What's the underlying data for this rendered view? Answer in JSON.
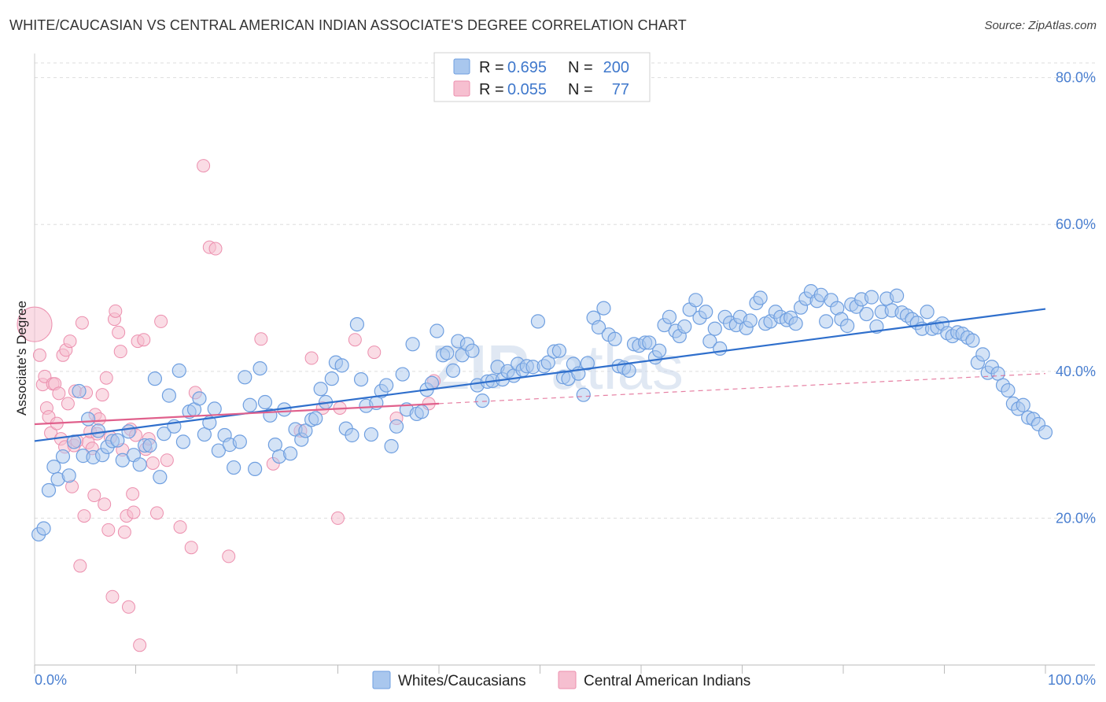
{
  "header": {
    "title": "WHITE/CAUCASIAN VS CENTRAL AMERICAN INDIAN ASSOCIATE'S DEGREE CORRELATION CHART",
    "source": "Source: ZipAtlas.com"
  },
  "watermark": {
    "zip": "ZIP",
    "atlas": "atlas"
  },
  "legend_box": {
    "r_label": "R =",
    "n_label": "N =",
    "rows": [
      {
        "r": "0.695",
        "n": "200"
      },
      {
        "r": "0.055",
        "n": "77"
      }
    ]
  },
  "colors": {
    "blue_fill": "#a9c7ee",
    "blue_stroke": "#6f9fe0",
    "blue_line": "#2f6fcc",
    "pink_fill": "#f6bfd0",
    "pink_stroke": "#ec8fae",
    "pink_line": "#e0608c",
    "tick_text": "#4a7fd0"
  },
  "chart_data": {
    "type": "scatter",
    "title": "WHITE/CAUCASIAN VS CENTRAL AMERICAN INDIAN ASSOCIATE'S DEGREE CORRELATION CHART",
    "xlabel": "",
    "ylabel": "Associate's Degree",
    "xlim": [
      0,
      100
    ],
    "ylim": [
      0,
      82
    ],
    "x_tick_labels": [
      "0.0%",
      "100.0%"
    ],
    "y_ticks": [
      20,
      40,
      60,
      80
    ],
    "y_tick_labels": [
      "20.0%",
      "40.0%",
      "60.0%",
      "80.0%"
    ],
    "grid": true,
    "legend_position": "bottom",
    "series": [
      {
        "name": "Whites/Caucasians",
        "r": 0.695,
        "n": 200,
        "trend": {
          "x0": 0,
          "y0": 30.5,
          "x1": 100,
          "y1": 48.5
        },
        "points": [
          [
            0.4,
            17.8
          ],
          [
            0.9,
            18.6
          ],
          [
            1.4,
            23.8
          ],
          [
            1.9,
            27.0
          ],
          [
            2.3,
            25.3
          ],
          [
            2.8,
            28.4
          ],
          [
            3.4,
            25.8
          ],
          [
            3.9,
            30.4
          ],
          [
            4.4,
            37.3
          ],
          [
            4.8,
            28.5
          ],
          [
            5.3,
            33.5
          ],
          [
            5.8,
            28.3
          ],
          [
            6.3,
            31.9
          ],
          [
            6.7,
            28.6
          ],
          [
            7.2,
            29.7
          ],
          [
            7.7,
            30.5
          ],
          [
            8.2,
            30.6
          ],
          [
            8.7,
            27.9
          ],
          [
            9.3,
            31.8
          ],
          [
            9.8,
            28.6
          ],
          [
            10.4,
            27.3
          ],
          [
            10.9,
            29.9
          ],
          [
            11.4,
            29.9
          ],
          [
            11.9,
            39.0
          ],
          [
            12.4,
            25.6
          ],
          [
            12.8,
            31.5
          ],
          [
            13.3,
            36.7
          ],
          [
            13.8,
            32.5
          ],
          [
            14.3,
            40.1
          ],
          [
            14.7,
            30.4
          ],
          [
            15.3,
            34.5
          ],
          [
            15.8,
            34.8
          ],
          [
            16.3,
            36.3
          ],
          [
            16.8,
            31.4
          ],
          [
            17.3,
            33.0
          ],
          [
            17.8,
            34.9
          ],
          [
            18.2,
            29.2
          ],
          [
            18.8,
            31.3
          ],
          [
            19.3,
            30.0
          ],
          [
            19.7,
            26.9
          ],
          [
            20.3,
            30.4
          ],
          [
            20.8,
            39.2
          ],
          [
            21.3,
            35.4
          ],
          [
            21.8,
            26.7
          ],
          [
            22.3,
            40.4
          ],
          [
            22.8,
            35.8
          ],
          [
            23.3,
            34.0
          ],
          [
            23.8,
            30.0
          ],
          [
            24.2,
            28.4
          ],
          [
            24.7,
            34.8
          ],
          [
            25.3,
            28.8
          ],
          [
            25.8,
            32.1
          ],
          [
            26.4,
            30.7
          ],
          [
            26.8,
            31.9
          ],
          [
            27.4,
            33.4
          ],
          [
            27.8,
            33.6
          ],
          [
            28.3,
            37.6
          ],
          [
            28.8,
            35.8
          ],
          [
            29.4,
            39.0
          ],
          [
            29.8,
            41.2
          ],
          [
            30.4,
            40.8
          ],
          [
            30.8,
            32.2
          ],
          [
            31.4,
            31.3
          ],
          [
            31.9,
            46.4
          ],
          [
            32.3,
            38.9
          ],
          [
            32.8,
            35.3
          ],
          [
            33.3,
            31.4
          ],
          [
            33.8,
            35.7
          ],
          [
            34.3,
            37.3
          ],
          [
            34.8,
            38.1
          ],
          [
            35.3,
            29.8
          ],
          [
            35.8,
            32.5
          ],
          [
            36.4,
            39.6
          ],
          [
            36.8,
            34.8
          ],
          [
            37.4,
            43.7
          ],
          [
            37.8,
            34.2
          ],
          [
            38.3,
            34.5
          ],
          [
            38.8,
            37.5
          ],
          [
            39.3,
            38.4
          ],
          [
            39.8,
            45.5
          ],
          [
            40.4,
            42.2
          ],
          [
            40.8,
            42.5
          ],
          [
            41.4,
            40.1
          ],
          [
            41.9,
            44.1
          ],
          [
            42.3,
            42.2
          ],
          [
            42.8,
            43.7
          ],
          [
            43.3,
            42.8
          ],
          [
            43.8,
            38.1
          ],
          [
            44.3,
            36.0
          ],
          [
            44.8,
            38.6
          ],
          [
            45.3,
            38.7
          ],
          [
            45.8,
            40.6
          ],
          [
            46.3,
            38.9
          ],
          [
            46.8,
            40.0
          ],
          [
            47.4,
            39.4
          ],
          [
            47.8,
            41.0
          ],
          [
            48.3,
            40.2
          ],
          [
            48.7,
            40.7
          ],
          [
            49.3,
            40.6
          ],
          [
            49.8,
            46.8
          ],
          [
            50.4,
            40.7
          ],
          [
            50.8,
            41.2
          ],
          [
            51.4,
            42.7
          ],
          [
            51.9,
            42.8
          ],
          [
            52.3,
            39.2
          ],
          [
            52.8,
            39.0
          ],
          [
            53.3,
            41.0
          ],
          [
            53.8,
            39.7
          ],
          [
            54.3,
            36.8
          ],
          [
            54.7,
            41.1
          ],
          [
            55.3,
            47.3
          ],
          [
            55.8,
            46.0
          ],
          [
            56.3,
            48.6
          ],
          [
            56.8,
            45.0
          ],
          [
            57.4,
            44.4
          ],
          [
            57.8,
            40.7
          ],
          [
            58.3,
            40.5
          ],
          [
            58.8,
            40.1
          ],
          [
            59.3,
            43.7
          ],
          [
            59.8,
            43.5
          ],
          [
            60.4,
            43.9
          ],
          [
            60.8,
            43.9
          ],
          [
            61.4,
            41.9
          ],
          [
            61.8,
            42.8
          ],
          [
            62.3,
            46.3
          ],
          [
            62.8,
            47.4
          ],
          [
            63.4,
            45.5
          ],
          [
            63.8,
            44.8
          ],
          [
            64.3,
            46.1
          ],
          [
            64.8,
            48.4
          ],
          [
            65.4,
            49.7
          ],
          [
            65.8,
            47.3
          ],
          [
            66.4,
            48.1
          ],
          [
            66.8,
            44.1
          ],
          [
            67.3,
            45.8
          ],
          [
            67.8,
            43.1
          ],
          [
            68.3,
            47.4
          ],
          [
            68.8,
            46.6
          ],
          [
            69.4,
            46.3
          ],
          [
            69.8,
            47.4
          ],
          [
            70.4,
            45.9
          ],
          [
            70.8,
            46.9
          ],
          [
            71.4,
            49.3
          ],
          [
            71.8,
            50.0
          ],
          [
            72.3,
            46.5
          ],
          [
            72.8,
            46.8
          ],
          [
            73.3,
            48.1
          ],
          [
            73.8,
            47.4
          ],
          [
            74.4,
            47.0
          ],
          [
            74.8,
            47.3
          ],
          [
            75.3,
            46.5
          ],
          [
            75.8,
            48.7
          ],
          [
            76.3,
            49.9
          ],
          [
            76.8,
            50.9
          ],
          [
            77.4,
            49.6
          ],
          [
            77.8,
            50.4
          ],
          [
            78.3,
            46.8
          ],
          [
            78.8,
            49.7
          ],
          [
            79.4,
            48.6
          ],
          [
            79.8,
            47.1
          ],
          [
            80.4,
            46.2
          ],
          [
            80.8,
            49.1
          ],
          [
            81.3,
            48.8
          ],
          [
            81.8,
            49.8
          ],
          [
            82.3,
            47.8
          ],
          [
            82.8,
            50.1
          ],
          [
            83.3,
            46.1
          ],
          [
            83.8,
            48.1
          ],
          [
            84.3,
            49.9
          ],
          [
            84.8,
            48.3
          ],
          [
            85.3,
            50.3
          ],
          [
            85.8,
            48.0
          ],
          [
            86.3,
            47.6
          ],
          [
            86.8,
            47.1
          ],
          [
            87.3,
            46.6
          ],
          [
            87.8,
            45.8
          ],
          [
            88.3,
            48.1
          ],
          [
            88.8,
            45.8
          ],
          [
            89.3,
            46.0
          ],
          [
            89.8,
            46.5
          ],
          [
            90.3,
            45.2
          ],
          [
            90.8,
            44.8
          ],
          [
            91.3,
            45.3
          ],
          [
            91.8,
            45.1
          ],
          [
            92.3,
            44.6
          ],
          [
            92.8,
            44.2
          ],
          [
            93.3,
            41.2
          ],
          [
            93.8,
            42.3
          ],
          [
            94.3,
            39.8
          ],
          [
            94.7,
            40.6
          ],
          [
            95.3,
            39.7
          ],
          [
            95.8,
            38.1
          ],
          [
            96.3,
            37.4
          ],
          [
            96.8,
            35.6
          ],
          [
            97.3,
            34.9
          ],
          [
            97.8,
            35.4
          ],
          [
            98.3,
            33.7
          ],
          [
            98.8,
            33.5
          ],
          [
            99.3,
            32.8
          ],
          [
            100.0,
            31.7
          ]
        ]
      },
      {
        "name": "Central American Indians",
        "r": 0.055,
        "n": 77,
        "trend": {
          "x0": 0,
          "y0": 32.8,
          "x1": 40,
          "y1": 35.6
        },
        "trend_dashed": {
          "x0": 40,
          "y0": 35.6,
          "x1": 100,
          "y1": 39.7
        },
        "points": [
          [
            0.5,
            42.2
          ],
          [
            0.8,
            38.2
          ],
          [
            1.0,
            39.3
          ],
          [
            1.2,
            35.0
          ],
          [
            1.4,
            33.8
          ],
          [
            1.6,
            31.6
          ],
          [
            1.8,
            38.3
          ],
          [
            2.0,
            38.3
          ],
          [
            2.2,
            32.9
          ],
          [
            2.4,
            37.0
          ],
          [
            2.6,
            30.8
          ],
          [
            2.8,
            42.2
          ],
          [
            3.0,
            29.7
          ],
          [
            3.1,
            42.9
          ],
          [
            3.3,
            35.6
          ],
          [
            3.5,
            44.1
          ],
          [
            3.7,
            24.3
          ],
          [
            3.9,
            29.9
          ],
          [
            4.0,
            37.3
          ],
          [
            4.2,
            30.5
          ],
          [
            4.5,
            13.5
          ],
          [
            4.7,
            46.6
          ],
          [
            4.9,
            20.3
          ],
          [
            5.1,
            37.1
          ],
          [
            5.3,
            30.3
          ],
          [
            5.5,
            31.8
          ],
          [
            5.7,
            29.5
          ],
          [
            5.9,
            23.1
          ],
          [
            6.0,
            34.1
          ],
          [
            6.2,
            31.5
          ],
          [
            6.4,
            33.5
          ],
          [
            6.7,
            36.8
          ],
          [
            6.9,
            21.9
          ],
          [
            7.1,
            39.1
          ],
          [
            7.3,
            18.4
          ],
          [
            7.5,
            31.0
          ],
          [
            7.7,
            9.3
          ],
          [
            7.9,
            47.1
          ],
          [
            8.0,
            48.2
          ],
          [
            8.3,
            45.3
          ],
          [
            8.5,
            42.7
          ],
          [
            8.7,
            29.3
          ],
          [
            8.9,
            18.1
          ],
          [
            9.1,
            20.3
          ],
          [
            9.3,
            7.9
          ],
          [
            9.5,
            32.1
          ],
          [
            9.7,
            23.3
          ],
          [
            9.8,
            20.8
          ],
          [
            10.0,
            31.3
          ],
          [
            10.2,
            44.1
          ],
          [
            10.4,
            2.7
          ],
          [
            10.8,
            44.3
          ],
          [
            11.0,
            29.4
          ],
          [
            11.3,
            30.8
          ],
          [
            11.7,
            27.5
          ],
          [
            12.1,
            20.7
          ],
          [
            12.5,
            46.8
          ],
          [
            13.1,
            27.9
          ],
          [
            14.4,
            18.8
          ],
          [
            15.5,
            16.0
          ],
          [
            15.9,
            37.1
          ],
          [
            16.7,
            68.0
          ],
          [
            17.3,
            56.9
          ],
          [
            17.9,
            56.7
          ],
          [
            19.2,
            14.8
          ],
          [
            22.4,
            44.4
          ],
          [
            23.6,
            27.4
          ],
          [
            26.3,
            31.9
          ],
          [
            27.4,
            41.8
          ],
          [
            28.5,
            35.0
          ],
          [
            30.0,
            20.0
          ],
          [
            30.2,
            35.0
          ],
          [
            31.7,
            44.3
          ],
          [
            33.6,
            42.6
          ],
          [
            35.8,
            33.6
          ],
          [
            39.0,
            35.6
          ],
          [
            39.5,
            38.7
          ]
        ]
      }
    ]
  },
  "bottom_legend": {
    "items": [
      {
        "label": "Whites/Caucasians"
      },
      {
        "label": "Central American Indians"
      }
    ]
  }
}
